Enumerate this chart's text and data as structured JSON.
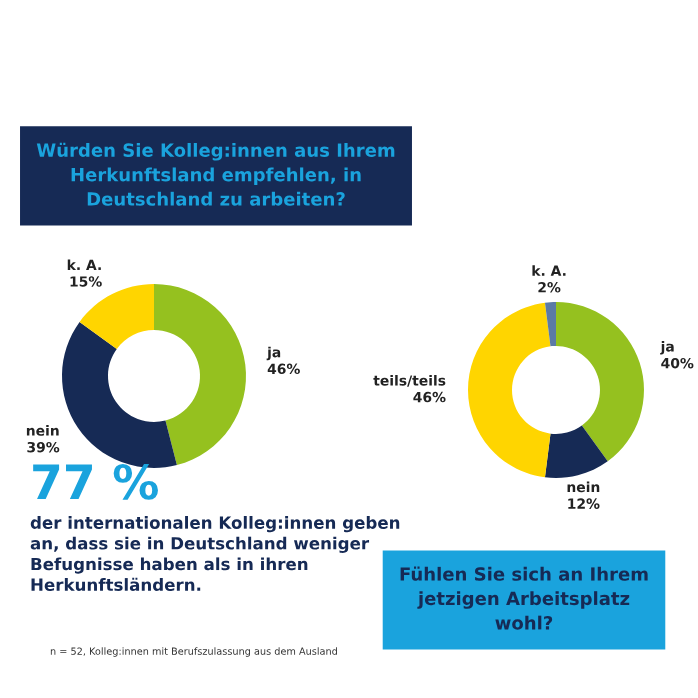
{
  "chart_data": [
    {
      "type": "donut",
      "title": "Würden Sie Kolleg:innen aus Ihrem\nHerkunftsland empfehlen, in\nDeutschland zu arbeiten?",
      "categories": [
        "ja",
        "nein",
        "k. A."
      ],
      "values": [
        46,
        39,
        15
      ],
      "value_labels": [
        "46%",
        "39%",
        "15%"
      ],
      "colors": [
        "#95c11f",
        "#162a55",
        "#ffd500"
      ]
    },
    {
      "type": "donut",
      "title": "Fühlen Sie sich an Ihrem\njetzigen Arbeitsplatz\nwohl?",
      "categories": [
        "ja",
        "nein",
        "teils/teils",
        "k. A."
      ],
      "values": [
        40,
        12,
        46,
        2
      ],
      "value_labels": [
        "40%",
        "12%",
        "46%",
        "2%"
      ],
      "colors": [
        "#95c11f",
        "#162a55",
        "#ffd500",
        "#5b7aa6"
      ]
    },
    {
      "type": "other",
      "annotations": [
        "77 %",
        "der internationalen Kolleg:innen geben\nan, dass sie in Deutschland weniger\nBefugnisse haben als in ihren\nHerkunftsländern.",
        "n = 52, Kolleg:innen mit Berufszulassung aus dem Ausland"
      ]
    }
  ]
}
